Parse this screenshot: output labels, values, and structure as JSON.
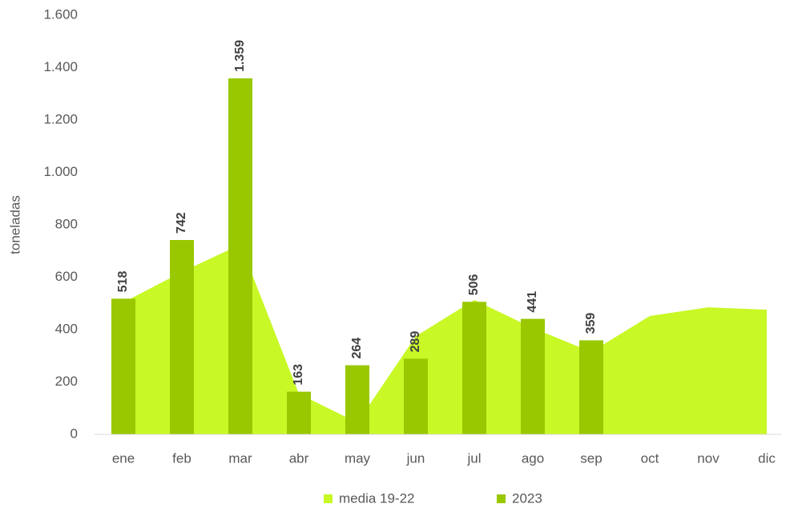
{
  "chart_data": {
    "type": "bar-area",
    "y_label": "toneladas",
    "categories": [
      "ene",
      "feb",
      "mar",
      "abr",
      "may",
      "jun",
      "jul",
      "ago",
      "sep",
      "oct",
      "nov",
      "dic"
    ],
    "series": [
      {
        "name": "media 19-22",
        "type": "area",
        "color": "#c8f825",
        "values": [
          504,
          620,
          725,
          155,
          45,
          375,
          513,
          406,
          315,
          452,
          485,
          476
        ]
      },
      {
        "name": "2023",
        "type": "bar",
        "color": "#99c800",
        "values": [
          518,
          742,
          1359,
          163,
          264,
          289,
          506,
          441,
          359,
          null,
          null,
          null
        ],
        "value_labels": [
          "518",
          "742",
          "1.359",
          "163",
          "264",
          "289",
          "506",
          "441",
          "359",
          null,
          null,
          null
        ]
      }
    ],
    "ylim": [
      0,
      1600
    ],
    "yticks": [
      0,
      200,
      400,
      600,
      800,
      {
        "value": 1000,
        "label": "1.000"
      },
      {
        "value": 1200,
        "label": "1.200"
      },
      {
        "value": 1400,
        "label": "1.400"
      },
      {
        "value": 1600,
        "label": "1.600"
      }
    ],
    "legend": "bottom"
  }
}
